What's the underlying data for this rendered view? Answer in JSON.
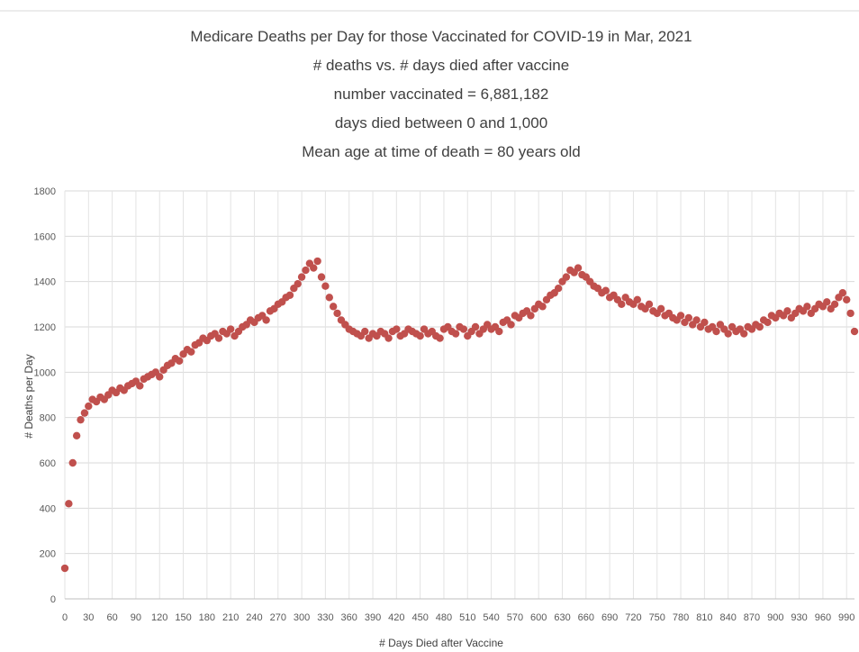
{
  "chart_data": {
    "type": "scatter",
    "title": "Medicare Deaths per Day for those Vaccinated for COVID-19 in Mar, 2021",
    "subtitle": [
      "# deaths vs. # days died after vaccine",
      "number vaccinated = 6,881,182",
      "days died between 0 and 1,000",
      "Mean age at time of death = 80 years old"
    ],
    "x_label": "# Days Died after Vaccine",
    "y_label": "# Deaths per Day",
    "color": "#c0504d",
    "grid": true,
    "xlim": [
      0,
      1000
    ],
    "ylim": [
      0,
      1800
    ],
    "xticks": [
      0,
      30,
      60,
      90,
      120,
      150,
      180,
      210,
      240,
      270,
      300,
      330,
      360,
      390,
      420,
      450,
      480,
      510,
      540,
      570,
      600,
      630,
      660,
      690,
      720,
      750,
      780,
      810,
      840,
      870,
      900,
      930,
      960,
      990
    ],
    "yticks": [
      0,
      200,
      400,
      600,
      800,
      1000,
      1200,
      1400,
      1600,
      1800
    ],
    "x": [
      0,
      5,
      10,
      15,
      20,
      25,
      30,
      35,
      40,
      45,
      50,
      55,
      60,
      65,
      70,
      75,
      80,
      85,
      90,
      95,
      100,
      105,
      110,
      115,
      120,
      125,
      130,
      135,
      140,
      145,
      150,
      155,
      160,
      165,
      170,
      175,
      180,
      185,
      190,
      195,
      200,
      205,
      210,
      215,
      220,
      225,
      230,
      235,
      240,
      245,
      250,
      255,
      260,
      265,
      270,
      275,
      280,
      285,
      290,
      295,
      300,
      305,
      310,
      315,
      320,
      325,
      330,
      335,
      340,
      345,
      350,
      355,
      360,
      365,
      370,
      375,
      380,
      385,
      390,
      395,
      400,
      405,
      410,
      415,
      420,
      425,
      430,
      435,
      440,
      445,
      450,
      455,
      460,
      465,
      470,
      475,
      480,
      485,
      490,
      495,
      500,
      505,
      510,
      515,
      520,
      525,
      530,
      535,
      540,
      545,
      550,
      555,
      560,
      565,
      570,
      575,
      580,
      585,
      590,
      595,
      600,
      605,
      610,
      615,
      620,
      625,
      630,
      635,
      640,
      645,
      650,
      655,
      660,
      665,
      670,
      675,
      680,
      685,
      690,
      695,
      700,
      705,
      710,
      715,
      720,
      725,
      730,
      735,
      740,
      745,
      750,
      755,
      760,
      765,
      770,
      775,
      780,
      785,
      790,
      795,
      800,
      805,
      810,
      815,
      820,
      825,
      830,
      835,
      840,
      845,
      850,
      855,
      860,
      865,
      870,
      875,
      880,
      885,
      890,
      895,
      900,
      905,
      910,
      915,
      920,
      925,
      930,
      935,
      940,
      945,
      950,
      955,
      960,
      965,
      970,
      975,
      980,
      985,
      990,
      995,
      1000
    ],
    "values": [
      135,
      420,
      600,
      720,
      790,
      820,
      850,
      880,
      870,
      890,
      880,
      900,
      920,
      910,
      930,
      920,
      940,
      950,
      960,
      940,
      970,
      980,
      990,
      1000,
      980,
      1010,
      1030,
      1040,
      1060,
      1050,
      1080,
      1100,
      1090,
      1120,
      1130,
      1150,
      1140,
      1160,
      1170,
      1150,
      1180,
      1170,
      1190,
      1160,
      1180,
      1200,
      1210,
      1230,
      1220,
      1240,
      1250,
      1230,
      1270,
      1280,
      1300,
      1310,
      1330,
      1340,
      1370,
      1390,
      1420,
      1450,
      1480,
      1460,
      1490,
      1420,
      1380,
      1330,
      1290,
      1260,
      1230,
      1210,
      1190,
      1180,
      1170,
      1160,
      1180,
      1150,
      1170,
      1160,
      1180,
      1170,
      1150,
      1180,
      1190,
      1160,
      1170,
      1190,
      1180,
      1170,
      1160,
      1190,
      1170,
      1180,
      1160,
      1150,
      1190,
      1200,
      1180,
      1170,
      1200,
      1190,
      1160,
      1180,
      1200,
      1170,
      1190,
      1210,
      1190,
      1200,
      1180,
      1220,
      1230,
      1210,
      1250,
      1240,
      1260,
      1270,
      1250,
      1280,
      1300,
      1290,
      1320,
      1340,
      1350,
      1370,
      1400,
      1420,
      1450,
      1440,
      1460,
      1430,
      1420,
      1400,
      1380,
      1370,
      1350,
      1360,
      1330,
      1340,
      1320,
      1300,
      1330,
      1310,
      1300,
      1320,
      1290,
      1280,
      1300,
      1270,
      1260,
      1280,
      1250,
      1260,
      1240,
      1230,
      1250,
      1220,
      1240,
      1210,
      1230,
      1200,
      1220,
      1190,
      1200,
      1180,
      1210,
      1190,
      1170,
      1200,
      1180,
      1190,
      1170,
      1200,
      1190,
      1210,
      1200,
      1230,
      1220,
      1250,
      1240,
      1260,
      1250,
      1270,
      1240,
      1260,
      1280,
      1270,
      1290,
      1260,
      1280,
      1300,
      1290,
      1310,
      1280,
      1300,
      1330,
      1350,
      1320,
      1260,
      1180
    ]
  }
}
